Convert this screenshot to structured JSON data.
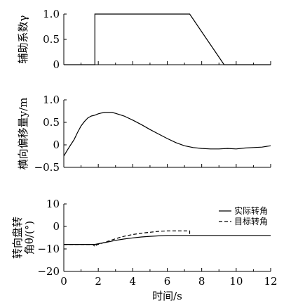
{
  "chart_data": [
    {
      "type": "line",
      "ylabel": "辅助系数γ",
      "ylim": [
        0,
        1.0
      ],
      "yticks": [
        "1.0",
        "0.5",
        "0"
      ],
      "xlim": [
        0,
        12
      ],
      "grid": false,
      "series": [
        {
          "x": [
            0,
            1.8,
            1.8,
            7.3,
            9.3,
            12
          ],
          "y": [
            0,
            0,
            1.0,
            1.0,
            0,
            0
          ],
          "style": "solid",
          "color": "#000000"
        }
      ]
    },
    {
      "type": "line",
      "ylabel": "横向偏移量y/m",
      "ylim": [
        -0.5,
        1.0
      ],
      "yticks": [
        "1.0",
        "0.5",
        "0",
        "−0.5"
      ],
      "xlim": [
        0,
        12
      ],
      "grid": false,
      "series": [
        {
          "x": [
            0,
            0.2,
            0.4,
            0.6,
            0.8,
            1.0,
            1.2,
            1.4,
            1.6,
            1.8,
            2.0,
            2.2,
            2.4,
            2.6,
            2.8,
            3.0,
            3.5,
            4.0,
            4.5,
            5.0,
            5.5,
            6.0,
            6.5,
            7.0,
            7.5,
            8.0,
            8.5,
            9.0,
            9.5,
            10.0,
            10.5,
            11.0,
            11.5,
            12.0
          ],
          "y": [
            -0.25,
            -0.12,
            0.0,
            0.12,
            0.28,
            0.42,
            0.52,
            0.6,
            0.64,
            0.66,
            0.69,
            0.71,
            0.72,
            0.72,
            0.72,
            0.7,
            0.64,
            0.55,
            0.45,
            0.34,
            0.24,
            0.14,
            0.05,
            -0.02,
            -0.06,
            -0.08,
            -0.09,
            -0.09,
            -0.08,
            -0.09,
            -0.07,
            -0.06,
            -0.05,
            -0.02
          ],
          "style": "solid",
          "color": "#000000"
        }
      ]
    },
    {
      "type": "line",
      "ylabel_lines": [
        "转向盘转",
        "角θ/(°)"
      ],
      "ylim": [
        -20,
        10
      ],
      "yticks": [
        "10",
        "0",
        "−10",
        "−20"
      ],
      "xlim": [
        0,
        12
      ],
      "xticks": [
        "0",
        "2",
        "4",
        "6",
        "8",
        "10",
        "12"
      ],
      "xlabel": "时间/s",
      "grid": false,
      "legend": {
        "position": "top-right",
        "entries": [
          "实际转角",
          "目标转角"
        ]
      },
      "series": [
        {
          "name": "实际转角",
          "x": [
            0,
            1.8,
            2.0,
            2.5,
            3.0,
            3.5,
            4.0,
            4.5,
            5.0,
            5.5,
            6.0,
            6.5,
            7.0,
            7.5,
            8.0,
            9.0,
            10.0,
            11.0,
            12.0
          ],
          "y": [
            -8,
            -8,
            -7.7,
            -7.0,
            -6.2,
            -5.6,
            -5.1,
            -4.7,
            -4.4,
            -4.2,
            -4.0,
            -4.0,
            -4.0,
            -4.0,
            -4.0,
            -4.0,
            -4.0,
            -4.0,
            -4.0
          ],
          "style": "solid",
          "color": "#000000"
        },
        {
          "name": "目标转角",
          "x": [
            0,
            1.7,
            1.8,
            1.9,
            2.0,
            2.4,
            2.8,
            3.2,
            3.6,
            4.0,
            4.5,
            5.0,
            5.5,
            6.0,
            6.5,
            7.0,
            7.3,
            7.3
          ],
          "y": [
            -8,
            -8,
            -9.0,
            -8.2,
            -8.0,
            -7.0,
            -6.0,
            -5.0,
            -4.2,
            -3.6,
            -3.0,
            -2.6,
            -2.2,
            -2.0,
            -2.0,
            -2.0,
            -2.0,
            -4.0
          ],
          "style": "dashed",
          "color": "#000000"
        }
      ]
    }
  ]
}
